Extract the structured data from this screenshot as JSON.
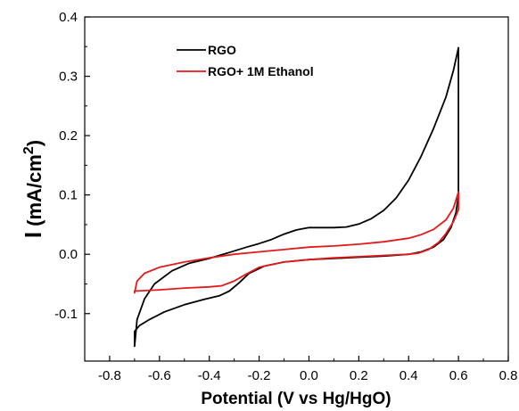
{
  "chart_data": {
    "type": "line",
    "title": "",
    "xlabel": "Potential (V vs Hg/HgO)",
    "ylabel": {
      "main": "I",
      "open": "(",
      "unit": "mA/cm",
      "sup": "2",
      "close": ")"
    },
    "xlim": [
      -0.9,
      0.8
    ],
    "ylim": [
      -0.18,
      0.4
    ],
    "x_ticks": [
      "-0.8",
      "-0.6",
      "-0.4",
      "-0.2",
      "0.0",
      "0.2",
      "0.4",
      "0.6",
      "0.8"
    ],
    "y_ticks": [
      "-0.1",
      "0.0",
      "0.1",
      "0.2",
      "0.3",
      "0.4"
    ],
    "grid": false,
    "legend_position": "top-left",
    "series": [
      {
        "name": "RGO",
        "color": "#000000",
        "closed": true,
        "points": [
          [
            -0.7,
            -0.155
          ],
          [
            -0.69,
            -0.11
          ],
          [
            -0.66,
            -0.075
          ],
          [
            -0.62,
            -0.05
          ],
          [
            -0.55,
            -0.028
          ],
          [
            -0.48,
            -0.015
          ],
          [
            -0.4,
            -0.007
          ],
          [
            -0.32,
            0.003
          ],
          [
            -0.25,
            0.012
          ],
          [
            -0.2,
            0.018
          ],
          [
            -0.15,
            0.025
          ],
          [
            -0.1,
            0.034
          ],
          [
            -0.05,
            0.041
          ],
          [
            0.0,
            0.045
          ],
          [
            0.05,
            0.045
          ],
          [
            0.1,
            0.045
          ],
          [
            0.15,
            0.046
          ],
          [
            0.2,
            0.051
          ],
          [
            0.25,
            0.06
          ],
          [
            0.3,
            0.074
          ],
          [
            0.35,
            0.095
          ],
          [
            0.4,
            0.125
          ],
          [
            0.45,
            0.165
          ],
          [
            0.5,
            0.212
          ],
          [
            0.55,
            0.265
          ],
          [
            0.58,
            0.31
          ],
          [
            0.6,
            0.348
          ],
          [
            0.6,
            0.32
          ],
          [
            0.6,
            0.2
          ],
          [
            0.6,
            0.1
          ],
          [
            0.59,
            0.07
          ],
          [
            0.57,
            0.045
          ],
          [
            0.54,
            0.025
          ],
          [
            0.5,
            0.012
          ],
          [
            0.45,
            0.004
          ],
          [
            0.4,
            0.0
          ],
          [
            0.3,
            -0.003
          ],
          [
            0.2,
            -0.005
          ],
          [
            0.1,
            -0.007
          ],
          [
            0.0,
            -0.009
          ],
          [
            -0.1,
            -0.013
          ],
          [
            -0.18,
            -0.02
          ],
          [
            -0.24,
            -0.032
          ],
          [
            -0.28,
            -0.048
          ],
          [
            -0.32,
            -0.062
          ],
          [
            -0.36,
            -0.07
          ],
          [
            -0.42,
            -0.076
          ],
          [
            -0.5,
            -0.085
          ],
          [
            -0.58,
            -0.097
          ],
          [
            -0.64,
            -0.11
          ],
          [
            -0.68,
            -0.12
          ],
          [
            -0.7,
            -0.13
          ]
        ]
      },
      {
        "name": "RGO+ 1M Ethanol",
        "color": "#e41a1c",
        "closed": true,
        "points": [
          [
            -0.7,
            -0.065
          ],
          [
            -0.69,
            -0.045
          ],
          [
            -0.66,
            -0.032
          ],
          [
            -0.6,
            -0.022
          ],
          [
            -0.5,
            -0.013
          ],
          [
            -0.4,
            -0.006
          ],
          [
            -0.3,
            0.0
          ],
          [
            -0.2,
            0.004
          ],
          [
            -0.1,
            0.008
          ],
          [
            0.0,
            0.012
          ],
          [
            0.1,
            0.014
          ],
          [
            0.2,
            0.017
          ],
          [
            0.3,
            0.021
          ],
          [
            0.4,
            0.027
          ],
          [
            0.45,
            0.033
          ],
          [
            0.5,
            0.042
          ],
          [
            0.55,
            0.058
          ],
          [
            0.58,
            0.078
          ],
          [
            0.6,
            0.105
          ],
          [
            0.6,
            0.09
          ],
          [
            0.6,
            0.075
          ],
          [
            0.58,
            0.055
          ],
          [
            0.55,
            0.035
          ],
          [
            0.52,
            0.02
          ],
          [
            0.48,
            0.008
          ],
          [
            0.44,
            0.002
          ],
          [
            0.4,
            0.0
          ],
          [
            0.3,
            -0.002
          ],
          [
            0.2,
            -0.004
          ],
          [
            0.1,
            -0.006
          ],
          [
            0.0,
            -0.009
          ],
          [
            -0.1,
            -0.013
          ],
          [
            -0.2,
            -0.022
          ],
          [
            -0.25,
            -0.033
          ],
          [
            -0.3,
            -0.045
          ],
          [
            -0.35,
            -0.053
          ],
          [
            -0.4,
            -0.055
          ],
          [
            -0.5,
            -0.057
          ],
          [
            -0.6,
            -0.06
          ],
          [
            -0.7,
            -0.062
          ]
        ]
      }
    ]
  }
}
